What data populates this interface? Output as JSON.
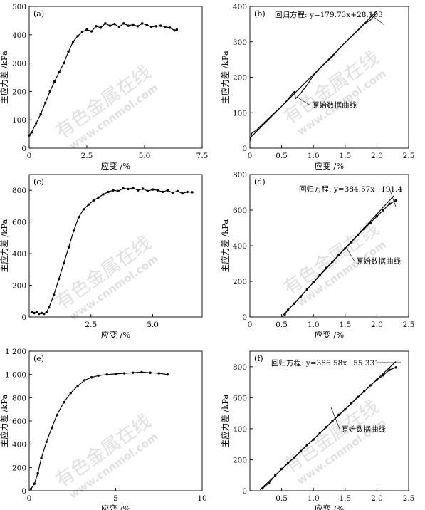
{
  "watermark": {
    "brand": "有色金属在线",
    "url": "www.cnnmol.com"
  },
  "chart_data": [
    {
      "id": "a",
      "type": "line",
      "panel_label": "(a)",
      "xlabel": "应变 /%",
      "ylabel": "主应力差 /kPa",
      "xlim": [
        0,
        7.5
      ],
      "ylim": [
        0,
        500
      ],
      "xticks": [
        0,
        2.5,
        5.0,
        7.5
      ],
      "xtick_labels": [
        "0",
        "2.5",
        "5.0",
        "7.5"
      ],
      "yticks": [
        0,
        100,
        200,
        300,
        400,
        500
      ],
      "ytick_labels": [
        "0",
        "100",
        "200",
        "300",
        "400",
        "500"
      ],
      "series": [
        {
          "role": "measured",
          "marker": true,
          "x": [
            0,
            0.1,
            0.3,
            0.5,
            0.7,
            0.9,
            1.1,
            1.3,
            1.5,
            1.7,
            1.9,
            2.1,
            2.3,
            2.5,
            2.7,
            2.9,
            3.1,
            3.3,
            3.5,
            3.7,
            3.9,
            4.1,
            4.3,
            4.5,
            4.7,
            4.9,
            5.1,
            5.3,
            5.5,
            5.7,
            5.9,
            6.1,
            6.3,
            6.4
          ],
          "y": [
            45,
            55,
            88,
            120,
            160,
            200,
            235,
            268,
            300,
            340,
            375,
            395,
            410,
            418,
            412,
            430,
            425,
            440,
            432,
            438,
            428,
            440,
            432,
            436,
            430,
            440,
            435,
            428,
            430,
            432,
            428,
            425,
            415,
            418
          ]
        }
      ]
    },
    {
      "id": "b",
      "type": "line",
      "panel_label": "(b)",
      "xlabel": "应变 /%",
      "ylabel": "主应力差 /kPa",
      "xlim": [
        0,
        2.5
      ],
      "ylim": [
        0,
        400
      ],
      "xticks": [
        0,
        0.5,
        1.0,
        1.5,
        2.0,
        2.5
      ],
      "xtick_labels": [
        "0",
        "0.5",
        "1.0",
        "1.5",
        "2.0",
        "2.5"
      ],
      "yticks": [
        0,
        100,
        200,
        300,
        400
      ],
      "ytick_labels": [
        "0",
        "100",
        "200",
        "300",
        "400"
      ],
      "annotations": {
        "regression": "回归方程: y=179.73x+28.103",
        "raw_curve": "原始数据曲线"
      },
      "series": [
        {
          "role": "measured",
          "marker": false,
          "x": [
            0,
            0.03,
            0.05,
            0.1,
            0.2,
            0.3,
            0.4,
            0.5,
            0.6,
            0.7,
            0.72,
            0.75,
            0.8,
            0.9,
            1.0,
            1.1,
            1.2,
            1.3,
            1.4,
            1.5,
            1.6,
            1.7,
            1.8,
            1.9,
            2.0
          ],
          "y": [
            20,
            42,
            45,
            50,
            68,
            85,
            102,
            118,
            138,
            160,
            140,
            145,
            155,
            178,
            205,
            225,
            242,
            258,
            280,
            298,
            315,
            332,
            350,
            362,
            382
          ]
        },
        {
          "role": "regression",
          "marker": false,
          "slope": 179.73,
          "intercept": 28.103,
          "x_range": [
            0,
            2.0
          ]
        }
      ]
    },
    {
      "id": "c",
      "type": "line",
      "panel_label": "(c)",
      "xlabel": "应变 /%",
      "ylabel": "主应力差 /kPa",
      "xlim": [
        0,
        7.0
      ],
      "ylim": [
        0,
        900
      ],
      "xticks": [
        2.5,
        5.0
      ],
      "xtick_labels": [
        "2.5",
        "5.0"
      ],
      "yticks": [
        0,
        200,
        400,
        600,
        800
      ],
      "ytick_labels": [
        "0",
        "200",
        "400",
        "600",
        "800"
      ],
      "series": [
        {
          "role": "measured",
          "marker": true,
          "x": [
            0.1,
            0.2,
            0.3,
            0.4,
            0.5,
            0.6,
            0.7,
            0.8,
            1.0,
            1.2,
            1.4,
            1.6,
            1.8,
            2.0,
            2.2,
            2.4,
            2.6,
            2.8,
            3.0,
            3.2,
            3.4,
            3.6,
            3.8,
            4.0,
            4.2,
            4.4,
            4.6,
            4.8,
            5.0,
            5.2,
            5.4,
            5.6,
            5.8,
            6.0,
            6.2,
            6.4,
            6.6
          ],
          "y": [
            30,
            25,
            30,
            20,
            25,
            20,
            30,
            60,
            140,
            240,
            340,
            440,
            545,
            630,
            680,
            710,
            735,
            755,
            775,
            790,
            800,
            795,
            812,
            808,
            815,
            800,
            810,
            795,
            805,
            800,
            790,
            800,
            785,
            795,
            780,
            790,
            788
          ]
        }
      ]
    },
    {
      "id": "d",
      "type": "line",
      "panel_label": "(d)",
      "xlabel": "应变 /%",
      "ylabel": "主应力差 /kPa",
      "xlim": [
        0,
        2.5
      ],
      "ylim": [
        0,
        800
      ],
      "xticks": [
        0,
        0.5,
        1.0,
        1.5,
        2.0,
        2.5
      ],
      "xtick_labels": [
        "0",
        "0.5",
        "1.0",
        "1.5",
        "2.0",
        "2.5"
      ],
      "yticks": [
        0,
        200,
        400,
        600,
        800
      ],
      "ytick_labels": [
        "0",
        "200",
        "400",
        "600",
        "800"
      ],
      "annotations": {
        "regression": "回归方程: y=384.57x−191.4",
        "raw_curve": "原始数据曲线"
      },
      "series": [
        {
          "role": "measured",
          "marker": true,
          "x": [
            0.55,
            0.6,
            0.7,
            0.8,
            0.9,
            1.0,
            1.1,
            1.2,
            1.3,
            1.4,
            1.5,
            1.6,
            1.7,
            1.8,
            1.9,
            2.0,
            2.1,
            2.2,
            2.3
          ],
          "y": [
            15,
            40,
            75,
            115,
            155,
            195,
            235,
            275,
            310,
            350,
            385,
            420,
            460,
            495,
            530,
            565,
            600,
            635,
            655
          ]
        },
        {
          "role": "regression",
          "marker": false,
          "slope": 384.57,
          "intercept": -191.4,
          "x_range": [
            0.5,
            2.27
          ]
        }
      ]
    },
    {
      "id": "e",
      "type": "line",
      "panel_label": "(e)",
      "xlabel": "应变 /%",
      "ylabel": "主应力差 /kPa",
      "xlim": [
        0,
        10
      ],
      "ylim": [
        0,
        1200
      ],
      "xticks": [
        0,
        5,
        10
      ],
      "xtick_labels": [
        "0",
        "5",
        "10"
      ],
      "yticks": [
        0,
        200,
        400,
        600,
        800,
        1000,
        1200
      ],
      "ytick_labels": [
        "0",
        "200",
        "400",
        "600",
        "800",
        "1 000",
        "1 200"
      ],
      "series": [
        {
          "role": "measured",
          "marker": true,
          "x": [
            0.1,
            0.3,
            0.5,
            0.7,
            1.0,
            1.3,
            1.6,
            2.0,
            2.4,
            2.8,
            3.2,
            3.6,
            4.0,
            4.5,
            5.0,
            5.5,
            6.0,
            6.5,
            7.0,
            7.5,
            8.0
          ],
          "y": [
            15,
            60,
            150,
            280,
            420,
            540,
            650,
            760,
            840,
            900,
            950,
            975,
            990,
            1000,
            1005,
            1010,
            1015,
            1020,
            1015,
            1010,
            1000
          ]
        }
      ]
    },
    {
      "id": "f",
      "type": "line",
      "panel_label": "(f)",
      "xlabel": "应变 /%",
      "ylabel": "主应力差 /kPa",
      "xlim": [
        0,
        2.5
      ],
      "ylim": [
        0,
        900
      ],
      "xticks": [
        0.5,
        1.0,
        1.5,
        2.0,
        2.5
      ],
      "xtick_labels": [
        "0.5",
        "1.0",
        "1.5",
        "2.0",
        "2.5"
      ],
      "yticks": [
        0,
        200,
        400,
        600,
        800
      ],
      "ytick_labels": [
        "0",
        "200",
        "400",
        "600",
        "800"
      ],
      "annotations": {
        "regression": "回归方程: y=386.58x−55.331",
        "raw_curve": "原始数据曲线"
      },
      "series": [
        {
          "role": "measured",
          "marker": true,
          "x": [
            0.2,
            0.3,
            0.4,
            0.5,
            0.6,
            0.7,
            0.8,
            0.9,
            1.0,
            1.1,
            1.2,
            1.3,
            1.4,
            1.5,
            1.6,
            1.7,
            1.8,
            1.9,
            2.0,
            2.1,
            2.2,
            2.3
          ],
          "y": [
            15,
            50,
            100,
            140,
            180,
            215,
            255,
            295,
            330,
            370,
            410,
            450,
            490,
            525,
            565,
            605,
            640,
            680,
            715,
            745,
            780,
            795
          ]
        },
        {
          "role": "regression",
          "marker": false,
          "slope": 386.58,
          "intercept": -55.331,
          "x_range": [
            0.16,
            2.3
          ]
        }
      ]
    }
  ]
}
